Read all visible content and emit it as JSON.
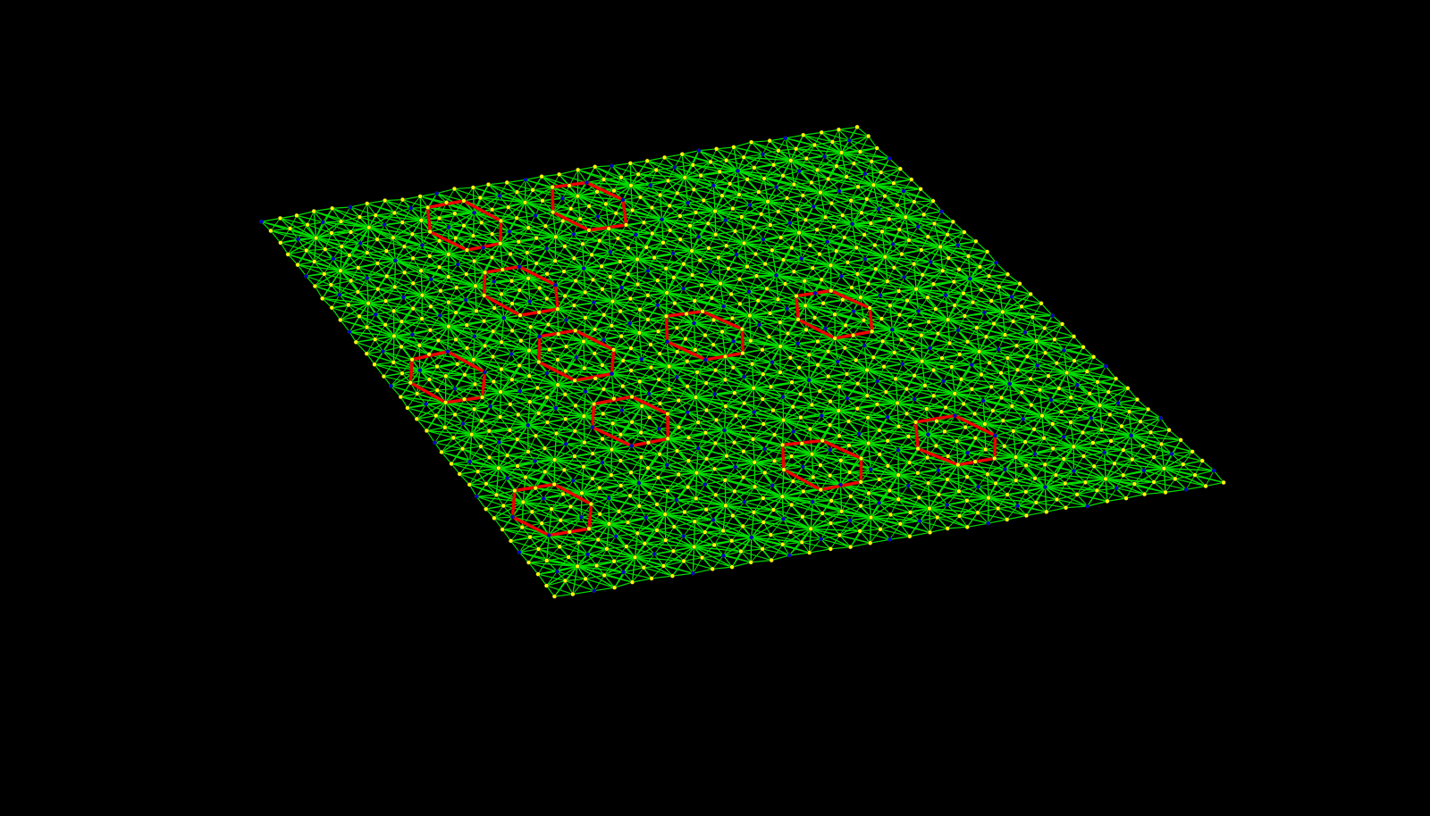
{
  "scene": {
    "background": "#000000",
    "object": "lattice-mesh",
    "colors": {
      "bonds": "#00dd00",
      "atoms_primary": "#ffff00",
      "atoms_secondary": "#0000cc",
      "ring_highlight": "#ee0000"
    }
  }
}
